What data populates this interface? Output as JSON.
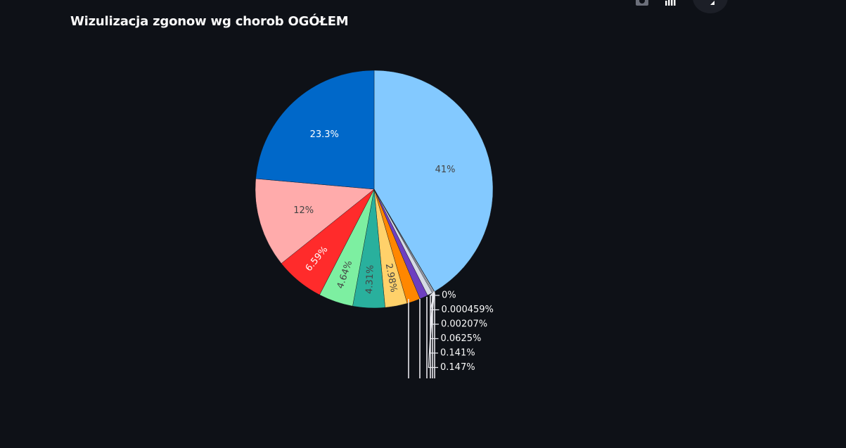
{
  "chart_data": {
    "type": "pie",
    "title": "Wizulizacja zgonow wg chorob OGÓŁEM",
    "slices": [
      {
        "value": 41.0,
        "label": "41%",
        "color": "#83c9ff",
        "text_color": "#444444"
      },
      {
        "value": 0.0,
        "label": "0%",
        "color": "#1a1a2e",
        "text_color": "#fafafa"
      },
      {
        "value": 0.000459,
        "label": "0.000459%",
        "color": "#e8e8ee",
        "text_color": "#fafafa"
      },
      {
        "value": 0.00207,
        "label": "0.00207%",
        "color": "#e8e8ee",
        "text_color": "#fafafa"
      },
      {
        "value": 0.0625,
        "label": "0.0625%",
        "color": "#9da3b5",
        "text_color": "#fafafa"
      },
      {
        "value": 0.141,
        "label": "0.141%",
        "color": "#e6e6f0",
        "text_color": "#fafafa"
      },
      {
        "value": 0.147,
        "label": "0.147%",
        "color": "#b9bfd1",
        "text_color": "#fafafa"
      },
      {
        "value": 0.7,
        "label": "",
        "color": "#d5dae5",
        "text_color": "#444444"
      },
      {
        "value": 1.1,
        "label": "",
        "color": "#6d3fc0",
        "text_color": "#fafafa"
      },
      {
        "value": 1.8,
        "label": "",
        "color": "#ff8700",
        "text_color": "#444444"
      },
      {
        "value": 2.98,
        "label": "2.98%",
        "color": "#ffd16a",
        "text_color": "#444444"
      },
      {
        "value": 4.31,
        "label": "4.31%",
        "color": "#29b09d",
        "text_color": "#444444"
      },
      {
        "value": 4.64,
        "label": "4.64%",
        "color": "#7defa1",
        "text_color": "#444444"
      },
      {
        "value": 6.59,
        "label": "6.59%",
        "color": "#ff2b2b",
        "text_color": "#ffffff"
      },
      {
        "value": 12.0,
        "label": "12%",
        "color": "#ffabab",
        "text_color": "#444444"
      },
      {
        "value": 23.3,
        "label": "23.3%",
        "color": "#0068c9",
        "text_color": "#ffffff"
      }
    ],
    "direction": "clockwise",
    "start": "top",
    "legend": "none"
  },
  "toolbar": {
    "icons": [
      "camera-icon",
      "bar-chart-icon",
      "fullscreen-icon"
    ]
  }
}
